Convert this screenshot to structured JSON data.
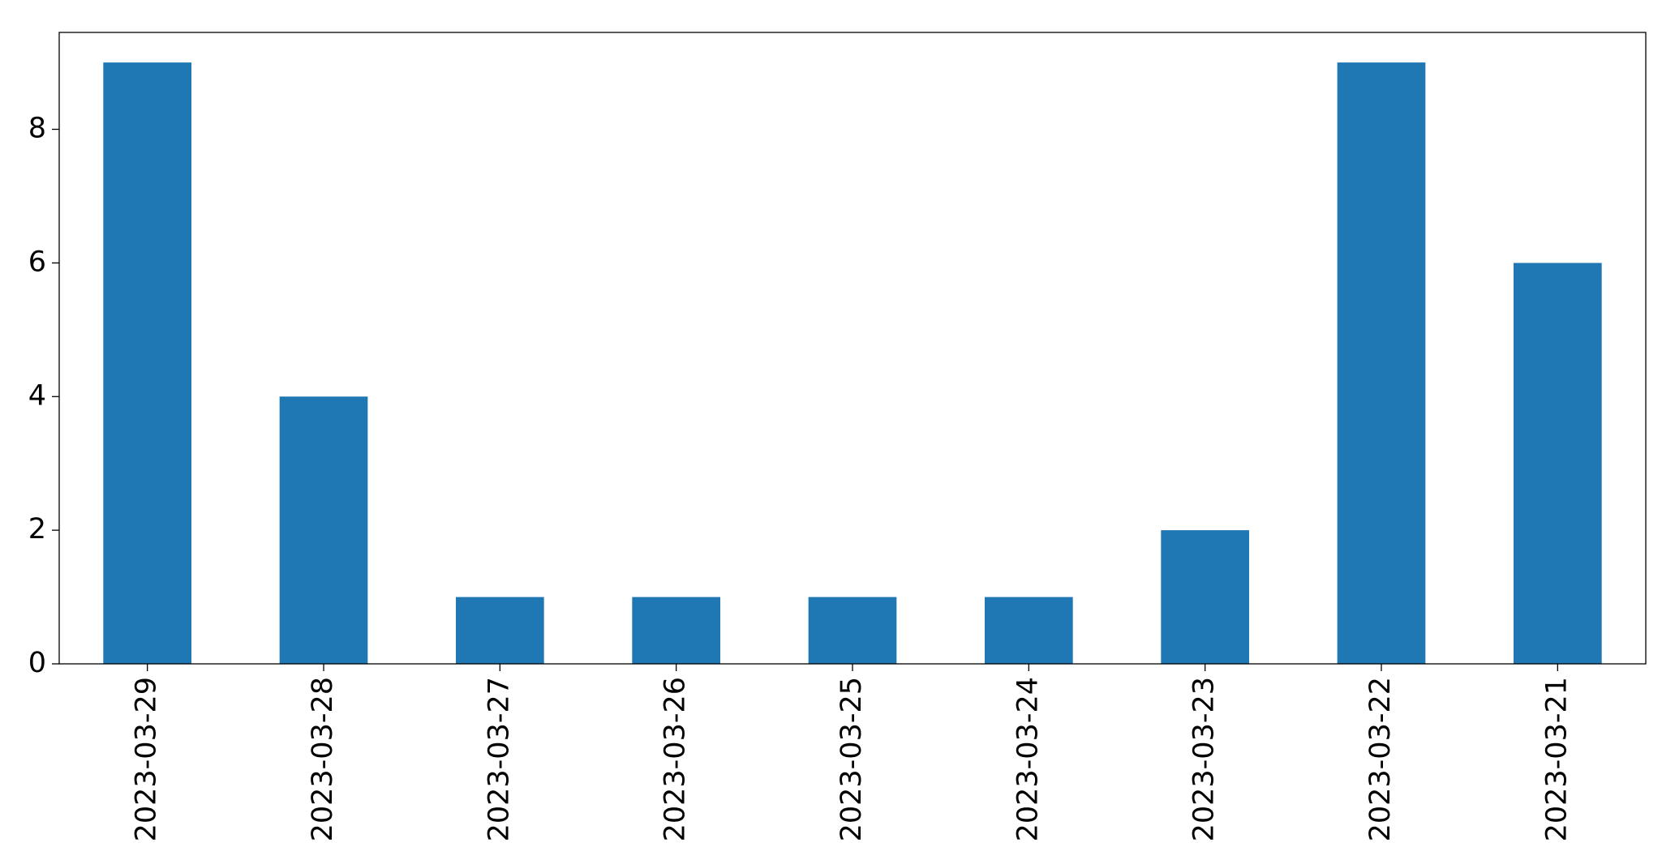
{
  "chart_data": {
    "type": "bar",
    "categories": [
      "2023-03-29",
      "2023-03-28",
      "2023-03-27",
      "2023-03-26",
      "2023-03-25",
      "2023-03-24",
      "2023-03-23",
      "2023-03-22",
      "2023-03-21"
    ],
    "values": [
      9,
      4,
      1,
      1,
      1,
      1,
      2,
      9,
      6
    ],
    "color": "#1f77b4",
    "ylim": [
      0,
      9.45
    ],
    "yticks": [
      0,
      2,
      4,
      6,
      8
    ],
    "grid": false
  }
}
